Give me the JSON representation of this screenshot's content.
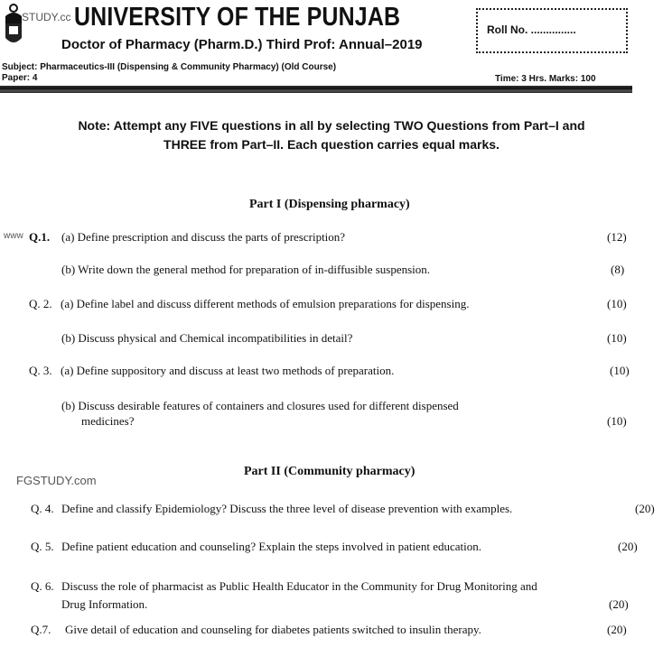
{
  "header": {
    "university": "UNIVERSITY OF THE PUNJAB",
    "exam": "Doctor of Pharmacy (Pharm.D.) Third Prof: Annual–2019",
    "roll_label": "Roll No. ...............",
    "subject": "Subject: Pharmaceutics-III (Dispensing & Community Pharmacy) (Old Course)",
    "paper": "Paper: 4",
    "time_marks": "Time: 3 Hrs. Marks: 100",
    "watermark_top": "STUDY.cc"
  },
  "note": {
    "line1": "Note:  Attempt any FIVE questions in all by selecting TWO Questions from Part–I and",
    "line2": "THREE from Part–II. Each question carries equal marks."
  },
  "part1": {
    "title": "Part I (Dispensing pharmacy)",
    "questions": [
      {
        "num": "Q.1.",
        "prefix": "www",
        "text": "(a) Define prescription and discuss the parts of prescription?",
        "marks": "(12)"
      },
      {
        "num": "",
        "text": "(b) Write down the general method for preparation of in-diffusible suspension.",
        "marks": "(8)"
      },
      {
        "num": "Q. 2.",
        "text": "(a) Define label and discuss different methods of emulsion preparations for dispensing.",
        "marks": "(10)"
      },
      {
        "num": "",
        "text": "(b) Discuss physical and Chemical incompatibilities in detail?",
        "marks": "(10)"
      },
      {
        "num": "Q. 3.",
        "text": "(a) Define suppository and discuss at least two methods of preparation.",
        "marks": "(10)"
      },
      {
        "num": "",
        "text": "(b) Discuss desirable features of containers and closures used for different dispensed",
        "text2": "medicines?",
        "marks": "(10)"
      }
    ]
  },
  "watermark_mid": "FGSTUDY.com",
  "part2": {
    "title": "Part II (Community pharmacy)",
    "questions": [
      {
        "num": "Q. 4.",
        "text": "Define and classify Epidemiology? Discuss the three level of disease prevention with examples.",
        "marks": "(20)"
      },
      {
        "num": "Q. 5.",
        "text": "Define patient education and counseling? Explain the steps involved in patient education.",
        "marks": "(20)"
      },
      {
        "num": "Q. 6.",
        "text": "Discuss the role of pharmacist as Public Health Educator in the Community for Drug Monitoring and",
        "text2": "Drug Information.",
        "marks": "(20)"
      },
      {
        "num": "Q.7.",
        "text": "Give detail of education and counseling for diabetes patients switched to insulin therapy.",
        "marks": "(20)"
      }
    ]
  }
}
